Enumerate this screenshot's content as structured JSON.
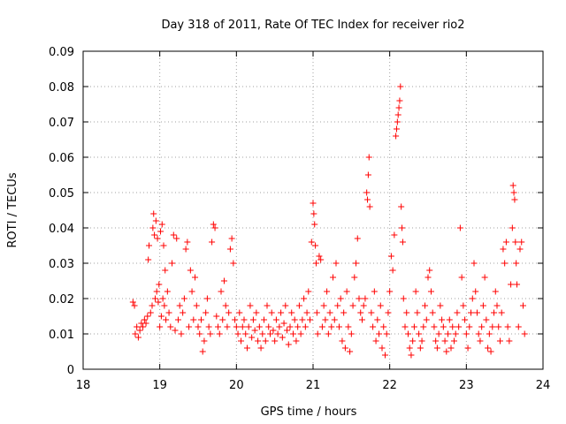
{
  "chart_data": {
    "type": "scatter",
    "title": "Day 318 of 2011, Rate Of TEC Index for receiver rio2",
    "xlabel": "GPS time / hours",
    "ylabel": "ROTI / TECUs",
    "xlim": [
      18,
      24
    ],
    "ylim": [
      0,
      0.09
    ],
    "x_ticks": [
      "18",
      "19",
      "20",
      "21",
      "22",
      "23",
      "24"
    ],
    "y_ticks": [
      "0",
      "0.01",
      "0.02",
      "0.03",
      "0.04",
      "0.05",
      "0.06",
      "0.07",
      "0.08",
      "0.09"
    ],
    "grid": true,
    "marker": "plus",
    "series_color": "#ff0000",
    "points": [
      [
        18.65,
        0.019
      ],
      [
        18.67,
        0.018
      ],
      [
        18.68,
        0.01
      ],
      [
        18.7,
        0.012
      ],
      [
        18.72,
        0.009
      ],
      [
        18.74,
        0.011
      ],
      [
        18.76,
        0.013
      ],
      [
        18.78,
        0.012
      ],
      [
        18.8,
        0.014
      ],
      [
        18.82,
        0.013
      ],
      [
        18.84,
        0.015
      ],
      [
        18.85,
        0.031
      ],
      [
        18.86,
        0.035
      ],
      [
        18.88,
        0.016
      ],
      [
        18.9,
        0.018
      ],
      [
        18.91,
        0.04
      ],
      [
        18.92,
        0.044
      ],
      [
        18.93,
        0.038
      ],
      [
        18.94,
        0.02
      ],
      [
        18.95,
        0.042
      ],
      [
        18.96,
        0.022
      ],
      [
        18.97,
        0.037
      ],
      [
        18.98,
        0.019
      ],
      [
        18.99,
        0.024
      ],
      [
        19.0,
        0.012
      ],
      [
        19.01,
        0.039
      ],
      [
        19.02,
        0.015
      ],
      [
        19.03,
        0.041
      ],
      [
        19.04,
        0.02
      ],
      [
        19.05,
        0.035
      ],
      [
        19.06,
        0.018
      ],
      [
        19.07,
        0.028
      ],
      [
        19.08,
        0.014
      ],
      [
        19.1,
        0.022
      ],
      [
        19.12,
        0.016
      ],
      [
        19.14,
        0.012
      ],
      [
        19.16,
        0.03
      ],
      [
        19.18,
        0.038
      ],
      [
        19.2,
        0.011
      ],
      [
        19.22,
        0.037
      ],
      [
        19.24,
        0.014
      ],
      [
        19.26,
        0.018
      ],
      [
        19.28,
        0.01
      ],
      [
        19.3,
        0.016
      ],
      [
        19.32,
        0.02
      ],
      [
        19.34,
        0.034
      ],
      [
        19.36,
        0.036
      ],
      [
        19.38,
        0.012
      ],
      [
        19.4,
        0.028
      ],
      [
        19.42,
        0.022
      ],
      [
        19.44,
        0.014
      ],
      [
        19.46,
        0.026
      ],
      [
        19.48,
        0.018
      ],
      [
        19.5,
        0.012
      ],
      [
        19.52,
        0.01
      ],
      [
        19.54,
        0.014
      ],
      [
        19.56,
        0.005
      ],
      [
        19.58,
        0.008
      ],
      [
        19.6,
        0.016
      ],
      [
        19.62,
        0.02
      ],
      [
        19.64,
        0.012
      ],
      [
        19.66,
        0.01
      ],
      [
        19.68,
        0.036
      ],
      [
        19.7,
        0.041
      ],
      [
        19.72,
        0.04
      ],
      [
        19.74,
        0.015
      ],
      [
        19.76,
        0.012
      ],
      [
        19.78,
        0.01
      ],
      [
        19.8,
        0.022
      ],
      [
        19.82,
        0.014
      ],
      [
        19.84,
        0.025
      ],
      [
        19.86,
        0.018
      ],
      [
        19.88,
        0.012
      ],
      [
        19.9,
        0.016
      ],
      [
        19.92,
        0.034
      ],
      [
        19.94,
        0.037
      ],
      [
        19.96,
        0.03
      ],
      [
        19.98,
        0.014
      ],
      [
        20.0,
        0.012
      ],
      [
        20.02,
        0.01
      ],
      [
        20.04,
        0.016
      ],
      [
        20.06,
        0.008
      ],
      [
        20.08,
        0.012
      ],
      [
        20.1,
        0.014
      ],
      [
        20.12,
        0.01
      ],
      [
        20.14,
        0.006
      ],
      [
        20.16,
        0.012
      ],
      [
        20.18,
        0.018
      ],
      [
        20.2,
        0.009
      ],
      [
        20.22,
        0.014
      ],
      [
        20.24,
        0.011
      ],
      [
        20.26,
        0.016
      ],
      [
        20.28,
        0.008
      ],
      [
        20.3,
        0.012
      ],
      [
        20.32,
        0.006
      ],
      [
        20.34,
        0.01
      ],
      [
        20.36,
        0.014
      ],
      [
        20.38,
        0.008
      ],
      [
        20.4,
        0.018
      ],
      [
        20.42,
        0.012
      ],
      [
        20.44,
        0.01
      ],
      [
        20.46,
        0.016
      ],
      [
        20.48,
        0.011
      ],
      [
        20.5,
        0.008
      ],
      [
        20.52,
        0.014
      ],
      [
        20.54,
        0.01
      ],
      [
        20.56,
        0.012
      ],
      [
        20.58,
        0.016
      ],
      [
        20.6,
        0.009
      ],
      [
        20.62,
        0.013
      ],
      [
        20.64,
        0.018
      ],
      [
        20.66,
        0.011
      ],
      [
        20.68,
        0.007
      ],
      [
        20.7,
        0.012
      ],
      [
        20.72,
        0.016
      ],
      [
        20.74,
        0.01
      ],
      [
        20.76,
        0.014
      ],
      [
        20.78,
        0.008
      ],
      [
        20.8,
        0.012
      ],
      [
        20.82,
        0.018
      ],
      [
        20.84,
        0.01
      ],
      [
        20.86,
        0.014
      ],
      [
        20.88,
        0.02
      ],
      [
        20.9,
        0.012
      ],
      [
        20.92,
        0.016
      ],
      [
        20.94,
        0.022
      ],
      [
        20.96,
        0.014
      ],
      [
        20.98,
        0.036
      ],
      [
        21.0,
        0.047
      ],
      [
        21.01,
        0.044
      ],
      [
        21.02,
        0.041
      ],
      [
        21.03,
        0.035
      ],
      [
        21.04,
        0.03
      ],
      [
        21.05,
        0.016
      ],
      [
        21.06,
        0.01
      ],
      [
        21.08,
        0.032
      ],
      [
        21.1,
        0.031
      ],
      [
        21.12,
        0.012
      ],
      [
        21.14,
        0.018
      ],
      [
        21.16,
        0.014
      ],
      [
        21.18,
        0.022
      ],
      [
        21.2,
        0.01
      ],
      [
        21.22,
        0.016
      ],
      [
        21.24,
        0.012
      ],
      [
        21.26,
        0.026
      ],
      [
        21.28,
        0.014
      ],
      [
        21.3,
        0.03
      ],
      [
        21.32,
        0.018
      ],
      [
        21.34,
        0.012
      ],
      [
        21.36,
        0.02
      ],
      [
        21.38,
        0.008
      ],
      [
        21.4,
        0.016
      ],
      [
        21.42,
        0.006
      ],
      [
        21.44,
        0.022
      ],
      [
        21.46,
        0.012
      ],
      [
        21.48,
        0.005
      ],
      [
        21.5,
        0.01
      ],
      [
        21.52,
        0.018
      ],
      [
        21.54,
        0.026
      ],
      [
        21.56,
        0.03
      ],
      [
        21.58,
        0.037
      ],
      [
        21.6,
        0.02
      ],
      [
        21.62,
        0.016
      ],
      [
        21.64,
        0.014
      ],
      [
        21.66,
        0.018
      ],
      [
        21.68,
        0.02
      ],
      [
        21.7,
        0.05
      ],
      [
        21.71,
        0.048
      ],
      [
        21.72,
        0.055
      ],
      [
        21.73,
        0.06
      ],
      [
        21.74,
        0.046
      ],
      [
        21.76,
        0.016
      ],
      [
        21.78,
        0.012
      ],
      [
        21.8,
        0.022
      ],
      [
        21.82,
        0.008
      ],
      [
        21.84,
        0.014
      ],
      [
        21.86,
        0.01
      ],
      [
        21.88,
        0.018
      ],
      [
        21.9,
        0.006
      ],
      [
        21.92,
        0.012
      ],
      [
        21.94,
        0.004
      ],
      [
        21.96,
        0.01
      ],
      [
        21.98,
        0.016
      ],
      [
        22.0,
        0.022
      ],
      [
        22.02,
        0.032
      ],
      [
        22.04,
        0.028
      ],
      [
        22.06,
        0.038
      ],
      [
        22.08,
        0.066
      ],
      [
        22.09,
        0.068
      ],
      [
        22.1,
        0.07
      ],
      [
        22.11,
        0.072
      ],
      [
        22.12,
        0.074
      ],
      [
        22.13,
        0.076
      ],
      [
        22.14,
        0.08
      ],
      [
        22.15,
        0.046
      ],
      [
        22.16,
        0.04
      ],
      [
        22.17,
        0.036
      ],
      [
        22.18,
        0.02
      ],
      [
        22.2,
        0.012
      ],
      [
        22.22,
        0.016
      ],
      [
        22.24,
        0.01
      ],
      [
        22.26,
        0.006
      ],
      [
        22.28,
        0.004
      ],
      [
        22.3,
        0.008
      ],
      [
        22.32,
        0.012
      ],
      [
        22.34,
        0.022
      ],
      [
        22.36,
        0.016
      ],
      [
        22.38,
        0.01
      ],
      [
        22.4,
        0.006
      ],
      [
        22.42,
        0.008
      ],
      [
        22.44,
        0.012
      ],
      [
        22.46,
        0.018
      ],
      [
        22.48,
        0.014
      ],
      [
        22.5,
        0.026
      ],
      [
        22.52,
        0.028
      ],
      [
        22.54,
        0.022
      ],
      [
        22.56,
        0.016
      ],
      [
        22.58,
        0.012
      ],
      [
        22.6,
        0.008
      ],
      [
        22.62,
        0.006
      ],
      [
        22.64,
        0.01
      ],
      [
        22.66,
        0.018
      ],
      [
        22.68,
        0.014
      ],
      [
        22.7,
        0.012
      ],
      [
        22.72,
        0.008
      ],
      [
        22.74,
        0.005
      ],
      [
        22.76,
        0.01
      ],
      [
        22.78,
        0.014
      ],
      [
        22.8,
        0.006
      ],
      [
        22.82,
        0.012
      ],
      [
        22.84,
        0.008
      ],
      [
        22.86,
        0.01
      ],
      [
        22.88,
        0.016
      ],
      [
        22.9,
        0.012
      ],
      [
        22.92,
        0.04
      ],
      [
        22.94,
        0.026
      ],
      [
        22.96,
        0.018
      ],
      [
        22.98,
        0.014
      ],
      [
        23.0,
        0.01
      ],
      [
        23.02,
        0.006
      ],
      [
        23.04,
        0.012
      ],
      [
        23.06,
        0.016
      ],
      [
        23.08,
        0.02
      ],
      [
        23.1,
        0.03
      ],
      [
        23.12,
        0.022
      ],
      [
        23.14,
        0.016
      ],
      [
        23.16,
        0.01
      ],
      [
        23.18,
        0.008
      ],
      [
        23.2,
        0.012
      ],
      [
        23.22,
        0.018
      ],
      [
        23.24,
        0.026
      ],
      [
        23.26,
        0.014
      ],
      [
        23.28,
        0.006
      ],
      [
        23.3,
        0.01
      ],
      [
        23.32,
        0.005
      ],
      [
        23.34,
        0.012
      ],
      [
        23.36,
        0.016
      ],
      [
        23.38,
        0.022
      ],
      [
        23.4,
        0.018
      ],
      [
        23.42,
        0.012
      ],
      [
        23.44,
        0.008
      ],
      [
        23.46,
        0.016
      ],
      [
        23.48,
        0.034
      ],
      [
        23.5,
        0.03
      ],
      [
        23.52,
        0.036
      ],
      [
        23.54,
        0.012
      ],
      [
        23.56,
        0.008
      ],
      [
        23.58,
        0.024
      ],
      [
        23.6,
        0.04
      ],
      [
        23.61,
        0.052
      ],
      [
        23.62,
        0.05
      ],
      [
        23.63,
        0.048
      ],
      [
        23.64,
        0.036
      ],
      [
        23.65,
        0.03
      ],
      [
        23.66,
        0.024
      ],
      [
        23.68,
        0.012
      ],
      [
        23.7,
        0.034
      ],
      [
        23.72,
        0.036
      ],
      [
        23.74,
        0.018
      ],
      [
        23.76,
        0.01
      ]
    ]
  }
}
